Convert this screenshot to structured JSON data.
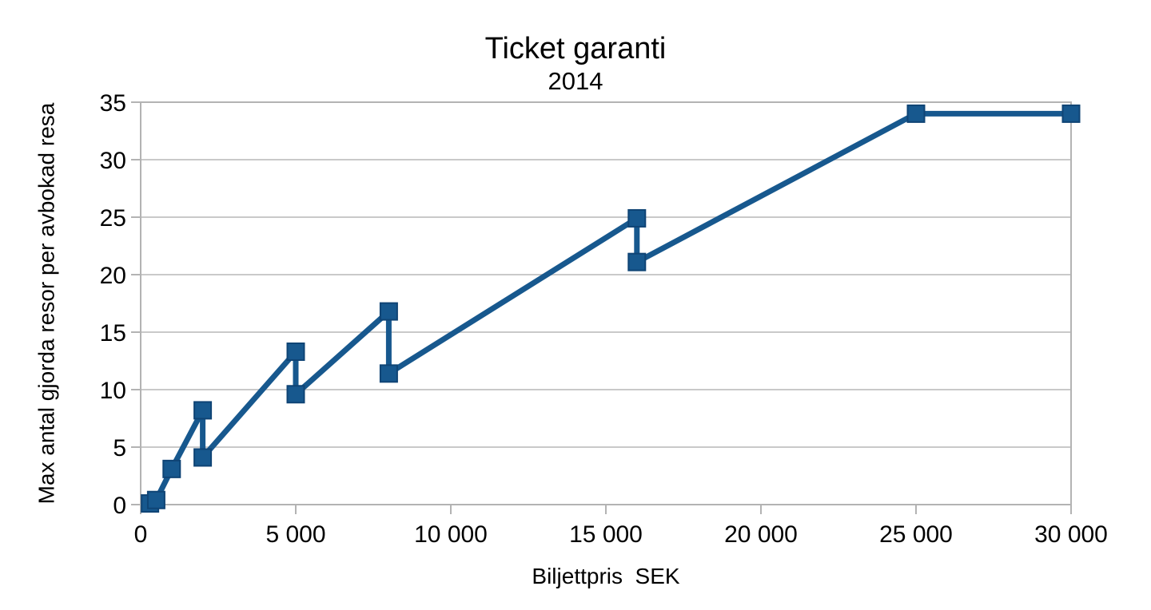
{
  "page": {
    "background": "#ffffff"
  },
  "chart_data": {
    "type": "line",
    "title": "Ticket garanti",
    "subtitle": "2014",
    "xlabel": "Biljettpris  SEK",
    "ylabel": "Max antal gjorda resor per avbokad resa",
    "legend": "none",
    "x_axis": {
      "min": 0,
      "max": 30000,
      "tick_values": [
        0,
        5000,
        10000,
        15000,
        20000,
        25000,
        30000
      ],
      "tick_labels": [
        "0",
        "5 000",
        "10 000",
        "15 000",
        "20 000",
        "25 000",
        "30 000"
      ]
    },
    "y_axis": {
      "min": 0,
      "max": 35,
      "tick_values": [
        0,
        5,
        10,
        15,
        20,
        25,
        30,
        35
      ],
      "tick_labels": [
        "0",
        "5",
        "10",
        "15",
        "20",
        "25",
        "30",
        "35"
      ]
    },
    "grid": {
      "horizontal": true,
      "vertical": false
    },
    "series": [
      {
        "marker": "square",
        "color": "#17588E",
        "marker_border_color": "#0F4475",
        "points": [
          [
            300,
            0.1
          ],
          [
            500,
            0.4
          ],
          [
            1000,
            3.1
          ],
          [
            2000,
            8.2
          ],
          [
            2000,
            4.1
          ],
          [
            5000,
            13.3
          ],
          [
            5000,
            9.6
          ],
          [
            8000,
            16.8
          ],
          [
            8000,
            11.4
          ],
          [
            16000,
            24.9
          ],
          [
            16000,
            21.1
          ],
          [
            25000,
            34
          ],
          [
            30000,
            34
          ]
        ]
      }
    ],
    "colors": {
      "gridline": "#c9c9c9",
      "frame": "#b3b3b3",
      "tick": "#b3b3b3",
      "text": "#000000",
      "background": "#ffffff"
    }
  }
}
